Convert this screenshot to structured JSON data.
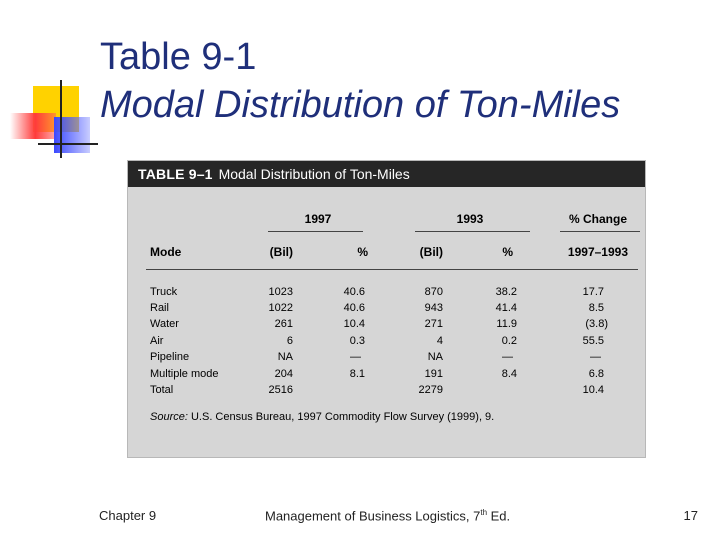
{
  "slide": {
    "title": "Table 9-1",
    "subtitle": "Modal Distribution of Ton-Miles"
  },
  "table": {
    "caption_label": "TABLE 9–1",
    "caption_title": "Modal Distribution of Ton-Miles",
    "group_headers": [
      "1997",
      "1993",
      "% Change"
    ],
    "column_headers": [
      "Mode",
      "(Bil)",
      "%",
      "(Bil)",
      "%",
      "1997–1993"
    ],
    "rows": [
      [
        "Truck",
        "1023",
        "40.6",
        "870",
        "38.2",
        "17.7"
      ],
      [
        "Rail",
        "1022",
        "40.6",
        "943",
        "41.4",
        "8.5"
      ],
      [
        "Water",
        "261",
        "10.4",
        "271",
        "11.9",
        "(3.8)"
      ],
      [
        "Air",
        "6",
        "0.3",
        "4",
        "0.2",
        "55.5"
      ],
      [
        "Pipeline",
        "NA",
        "—",
        "NA",
        "—",
        "—"
      ],
      [
        "Multiple mode",
        "204",
        "8.1",
        "191",
        "8.4",
        "6.8"
      ],
      [
        "Total",
        "2516",
        "",
        "2279",
        "",
        "10.4"
      ]
    ],
    "source_label": "Source:",
    "source_text": "U.S. Census Bureau, 1997 Commodity Flow Survey (1999), 9."
  },
  "footer": {
    "left": "Chapter 9",
    "center_prefix": "Management of Business Logistics, 7",
    "center_sup": "th",
    "center_suffix": " Ed.",
    "page_number": "17"
  },
  "colors": {
    "title": "#1f2f7a",
    "table_bg": "#d6d6d6",
    "table_header_bg": "#262626",
    "deco_yellow": "#ffd200",
    "deco_red": "#ff3b3b",
    "deco_blue": "#3b49ff"
  }
}
